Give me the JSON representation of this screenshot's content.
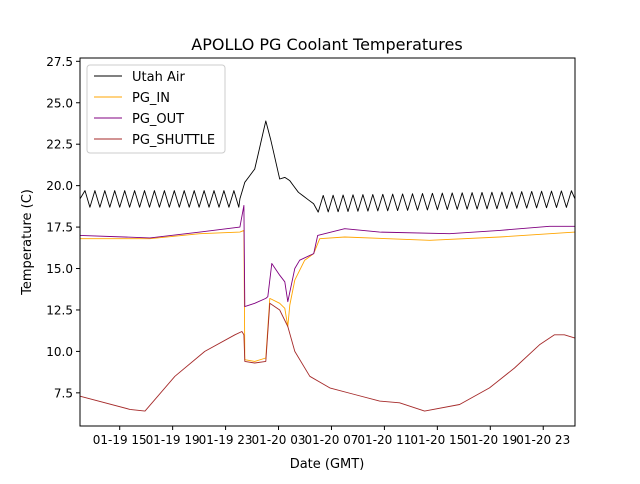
{
  "chart_data": {
    "type": "line",
    "title": "APOLLO PG Coolant Temperatures",
    "xlabel": "Date (GMT)",
    "ylabel": "Temperature (C)",
    "x_units": "hours since 01-19 12:00",
    "xlim": [
      0,
      37.4
    ],
    "ylim": [
      5.5,
      27.7
    ],
    "grid": false,
    "legend_placement": "top-left",
    "xticks": [
      {
        "value": 3,
        "label": "01-19 15"
      },
      {
        "value": 7,
        "label": "01-19 19"
      },
      {
        "value": 11,
        "label": "01-19 23"
      },
      {
        "value": 15,
        "label": "01-20 03"
      },
      {
        "value": 19,
        "label": "01-20 07"
      },
      {
        "value": 23,
        "label": "01-20 11"
      },
      {
        "value": 27,
        "label": "01-20 15"
      },
      {
        "value": 31,
        "label": "01-20 19"
      },
      {
        "value": 35,
        "label": "01-20 23"
      }
    ],
    "yticks": [
      {
        "value": 7.5,
        "label": "7.5"
      },
      {
        "value": 10.0,
        "label": "10.0"
      },
      {
        "value": 12.5,
        "label": "12.5"
      },
      {
        "value": 15.0,
        "label": "15.0"
      },
      {
        "value": 17.5,
        "label": "17.5"
      },
      {
        "value": 20.0,
        "label": "20.0"
      },
      {
        "value": 22.5,
        "label": "22.5"
      },
      {
        "value": 25.0,
        "label": "25.0"
      },
      {
        "value": 27.5,
        "label": "27.5"
      }
    ],
    "series": [
      {
        "name": "Utah Air",
        "color": "#000000",
        "oscillation": {
          "amplitude": 0.5,
          "period_hours": 0.75,
          "ranges": [
            [
              0,
              12.08
            ],
            [
              17.66,
              37.4
            ]
          ]
        },
        "points": [
          [
            0,
            19.2
          ],
          [
            12.08,
            19.2
          ],
          [
            12.45,
            20.2
          ],
          [
            13.2,
            21.0
          ],
          [
            14.04,
            23.9
          ],
          [
            14.4,
            22.8
          ],
          [
            15.09,
            20.4
          ],
          [
            15.47,
            20.5
          ],
          [
            15.85,
            20.3
          ],
          [
            16.5,
            19.6
          ],
          [
            17.66,
            18.9
          ],
          [
            37.4,
            19.2
          ]
        ]
      },
      {
        "name": "PG_IN",
        "color": "#ffa500",
        "points": [
          [
            0,
            16.8
          ],
          [
            5.28,
            16.8
          ],
          [
            9.06,
            17.1
          ],
          [
            12.08,
            17.2
          ],
          [
            12.38,
            17.3
          ],
          [
            12.45,
            9.5
          ],
          [
            13.2,
            9.4
          ],
          [
            14.04,
            9.6
          ],
          [
            14.34,
            13.2
          ],
          [
            15.09,
            12.9
          ],
          [
            15.47,
            12.6
          ],
          [
            15.7,
            11.5
          ],
          [
            15.85,
            12.8
          ],
          [
            16.23,
            14.3
          ],
          [
            16.98,
            15.5
          ],
          [
            17.66,
            15.9
          ],
          [
            18.11,
            16.8
          ],
          [
            20.0,
            16.9
          ],
          [
            26.42,
            16.7
          ],
          [
            31.7,
            16.9
          ],
          [
            37.4,
            17.2
          ]
        ]
      },
      {
        "name": "PG_OUT",
        "color": "#800080",
        "points": [
          [
            0,
            17.0
          ],
          [
            5.28,
            16.85
          ],
          [
            9.06,
            17.2
          ],
          [
            12.08,
            17.5
          ],
          [
            12.38,
            18.8
          ],
          [
            12.45,
            12.7
          ],
          [
            13.2,
            12.9
          ],
          [
            14.04,
            13.2
          ],
          [
            14.19,
            13.3
          ],
          [
            14.49,
            15.3
          ],
          [
            15.09,
            14.6
          ],
          [
            15.47,
            14.2
          ],
          [
            15.7,
            13.0
          ],
          [
            16.23,
            15.0
          ],
          [
            16.6,
            15.5
          ],
          [
            17.66,
            15.9
          ],
          [
            17.96,
            17.0
          ],
          [
            20.0,
            17.4
          ],
          [
            22.64,
            17.2
          ],
          [
            27.92,
            17.1
          ],
          [
            31.7,
            17.3
          ],
          [
            35.47,
            17.55
          ],
          [
            37.4,
            17.55
          ]
        ]
      },
      {
        "name": "PG_SHUTTLE",
        "color": "#a52a2a",
        "points": [
          [
            0,
            7.3
          ],
          [
            3.77,
            6.5
          ],
          [
            4.91,
            6.4
          ],
          [
            7.17,
            8.5
          ],
          [
            9.43,
            10.0
          ],
          [
            11.7,
            11.0
          ],
          [
            12.23,
            11.2
          ],
          [
            12.38,
            11.0
          ],
          [
            12.45,
            9.4
          ],
          [
            13.2,
            9.3
          ],
          [
            14.04,
            9.4
          ],
          [
            14.34,
            12.9
          ],
          [
            15.09,
            12.5
          ],
          [
            15.7,
            11.5
          ],
          [
            16.23,
            10.0
          ],
          [
            17.36,
            8.5
          ],
          [
            18.87,
            7.8
          ],
          [
            20.75,
            7.4
          ],
          [
            22.64,
            7.0
          ],
          [
            24.15,
            6.9
          ],
          [
            26.04,
            6.4
          ],
          [
            28.68,
            6.8
          ],
          [
            30.94,
            7.8
          ],
          [
            32.83,
            9.0
          ],
          [
            34.72,
            10.4
          ],
          [
            35.85,
            11.0
          ],
          [
            36.6,
            11.0
          ],
          [
            37.4,
            10.8
          ]
        ]
      }
    ]
  }
}
